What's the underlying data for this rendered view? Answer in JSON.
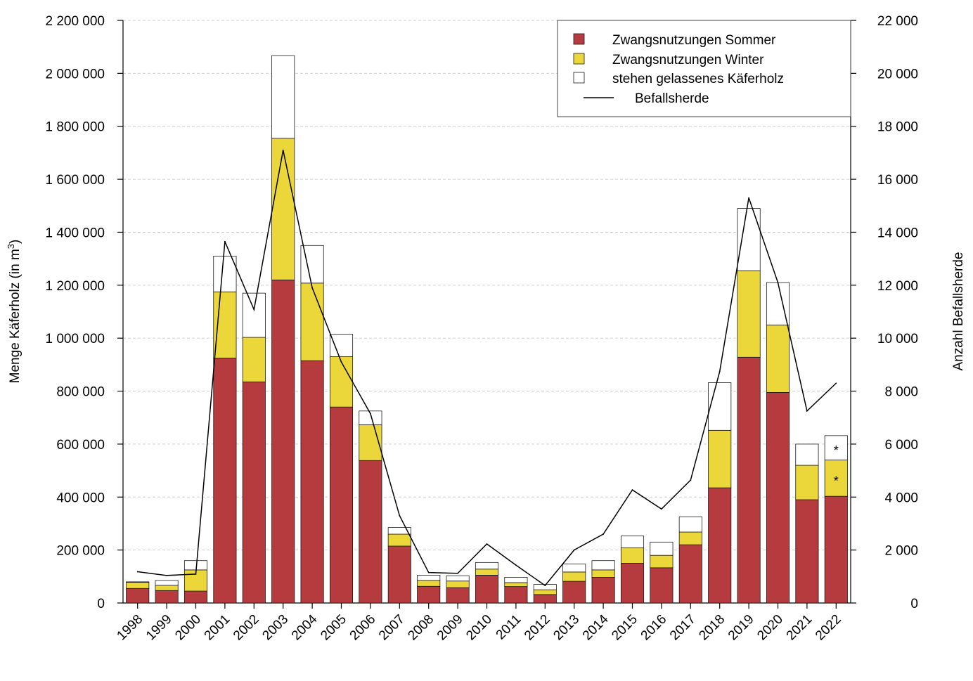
{
  "chart_data": {
    "type": "bar",
    "stacked": true,
    "categories": [
      "1998",
      "1999",
      "2000",
      "2001",
      "2002",
      "2003",
      "2004",
      "2005",
      "2006",
      "2007",
      "2008",
      "2009",
      "2010",
      "2011",
      "2012",
      "2013",
      "2014",
      "2015",
      "2016",
      "2017",
      "2018",
      "2019",
      "2020",
      "2021",
      "2022"
    ],
    "series": [
      {
        "name": "Zwangsnutzungen Sommer",
        "color": "#b53b3e",
        "values": [
          55000,
          47000,
          45000,
          925000,
          835000,
          1220000,
          915000,
          740000,
          538000,
          215000,
          63000,
          58000,
          105000,
          62000,
          32000,
          82000,
          97000,
          150000,
          133000,
          220000,
          435000,
          928000,
          795000,
          390000,
          403000
        ]
      },
      {
        "name": "Zwangsnutzungen Winter",
        "color": "#ecd73a",
        "values": [
          23000,
          20000,
          80000,
          250000,
          168000,
          535000,
          293000,
          190000,
          135000,
          45000,
          22000,
          25000,
          23000,
          15000,
          18000,
          35000,
          28000,
          58000,
          47000,
          48000,
          217000,
          327000,
          255000,
          130000,
          137000
        ]
      },
      {
        "name": "stehen gelassenes Käferholz",
        "color": "#ffffff",
        "values": [
          2000,
          18000,
          35000,
          135000,
          167000,
          312000,
          142000,
          85000,
          52000,
          25000,
          20000,
          20000,
          25000,
          20000,
          20000,
          30000,
          35000,
          45000,
          50000,
          57000,
          180000,
          235000,
          160000,
          80000,
          92000
        ]
      }
    ],
    "line": {
      "name": "Befallsherde",
      "axis": "right",
      "values": [
        1180,
        1040,
        1090,
        13650,
        11080,
        17100,
        11900,
        9100,
        7150,
        3300,
        1150,
        1120,
        2230,
        1430,
        660,
        2000,
        2600,
        4270,
        3550,
        4640,
        8740,
        15300,
        12100,
        7250,
        8300
      ]
    },
    "annotations": [
      {
        "category": "2022",
        "series": "Zwangsnutzungen Winter",
        "text": "*"
      },
      {
        "category": "2022",
        "series": "stehen gelassenes Käferholz",
        "text": "*"
      }
    ],
    "title": "",
    "xlabel": "",
    "ylabel": "Menge Käferholz (in m",
    "ylabel_superscript": "3",
    "ylabel_suffix": ")",
    "ylim": [
      0,
      2200000
    ],
    "yticks": [
      0,
      200000,
      400000,
      600000,
      800000,
      1000000,
      1200000,
      1400000,
      1600000,
      1800000,
      2000000,
      2200000
    ],
    "ytick_labels": [
      "0",
      "200 000",
      "400 000",
      "600 000",
      "800 000",
      "1 000 000",
      "1 200 000",
      "1 400 000",
      "1 600 000",
      "1 800 000",
      "2 000 000",
      "2 200 000"
    ],
    "y2label": "Anzahl Befallsherde",
    "y2lim": [
      0,
      22000
    ],
    "y2ticks": [
      0,
      2000,
      4000,
      6000,
      8000,
      10000,
      12000,
      14000,
      16000,
      18000,
      20000,
      22000
    ],
    "y2tick_labels": [
      "0",
      "2 000",
      "4 000",
      "6 000",
      "8 000",
      "10 000",
      "12 000",
      "14 000",
      "16 000",
      "18 000",
      "20 000",
      "22 000"
    ],
    "grid": true,
    "legend": "top-right"
  }
}
